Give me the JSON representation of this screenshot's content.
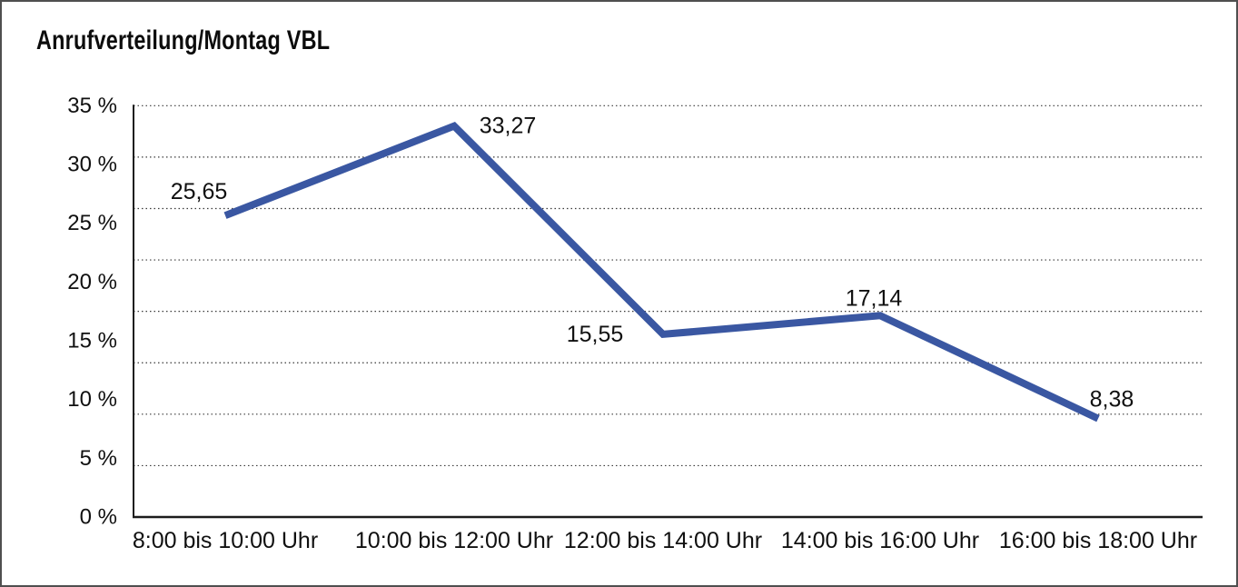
{
  "title": "Anrufverteilung/Montag VBL",
  "colors": {
    "line": "#3a57a2",
    "axis": "#1c1c1c",
    "grid": "#3a3a3a",
    "text": "#101010",
    "background": "#ffffff",
    "frame_border": "#4f4f4f"
  },
  "chart_data": {
    "type": "line",
    "title": "Anrufverteilung/Montag VBL",
    "categories": [
      "8:00 bis 10:00 Uhr",
      "10:00 bis 12:00 Uhr",
      "12:00 bis 14:00 Uhr",
      "14:00 bis 16:00 Uhr",
      "16:00 bis 18:00 Uhr"
    ],
    "values": [
      25.65,
      33.27,
      15.55,
      17.14,
      8.38
    ],
    "point_labels": [
      "25,65",
      "33,27",
      "15,55",
      "17,14",
      "8,38"
    ],
    "y_tick_values": [
      35,
      30,
      25,
      20,
      15,
      10,
      5,
      0
    ],
    "y_tick_labels": [
      "35 %",
      "30 %",
      "25 %",
      "20 %",
      "15 %",
      "10 %",
      "5 %",
      "0 %"
    ],
    "xlabel": "",
    "ylabel": "",
    "ylim": [
      0,
      35
    ],
    "unit": "%",
    "grid": "horizontal-dotted",
    "legend": "none"
  }
}
